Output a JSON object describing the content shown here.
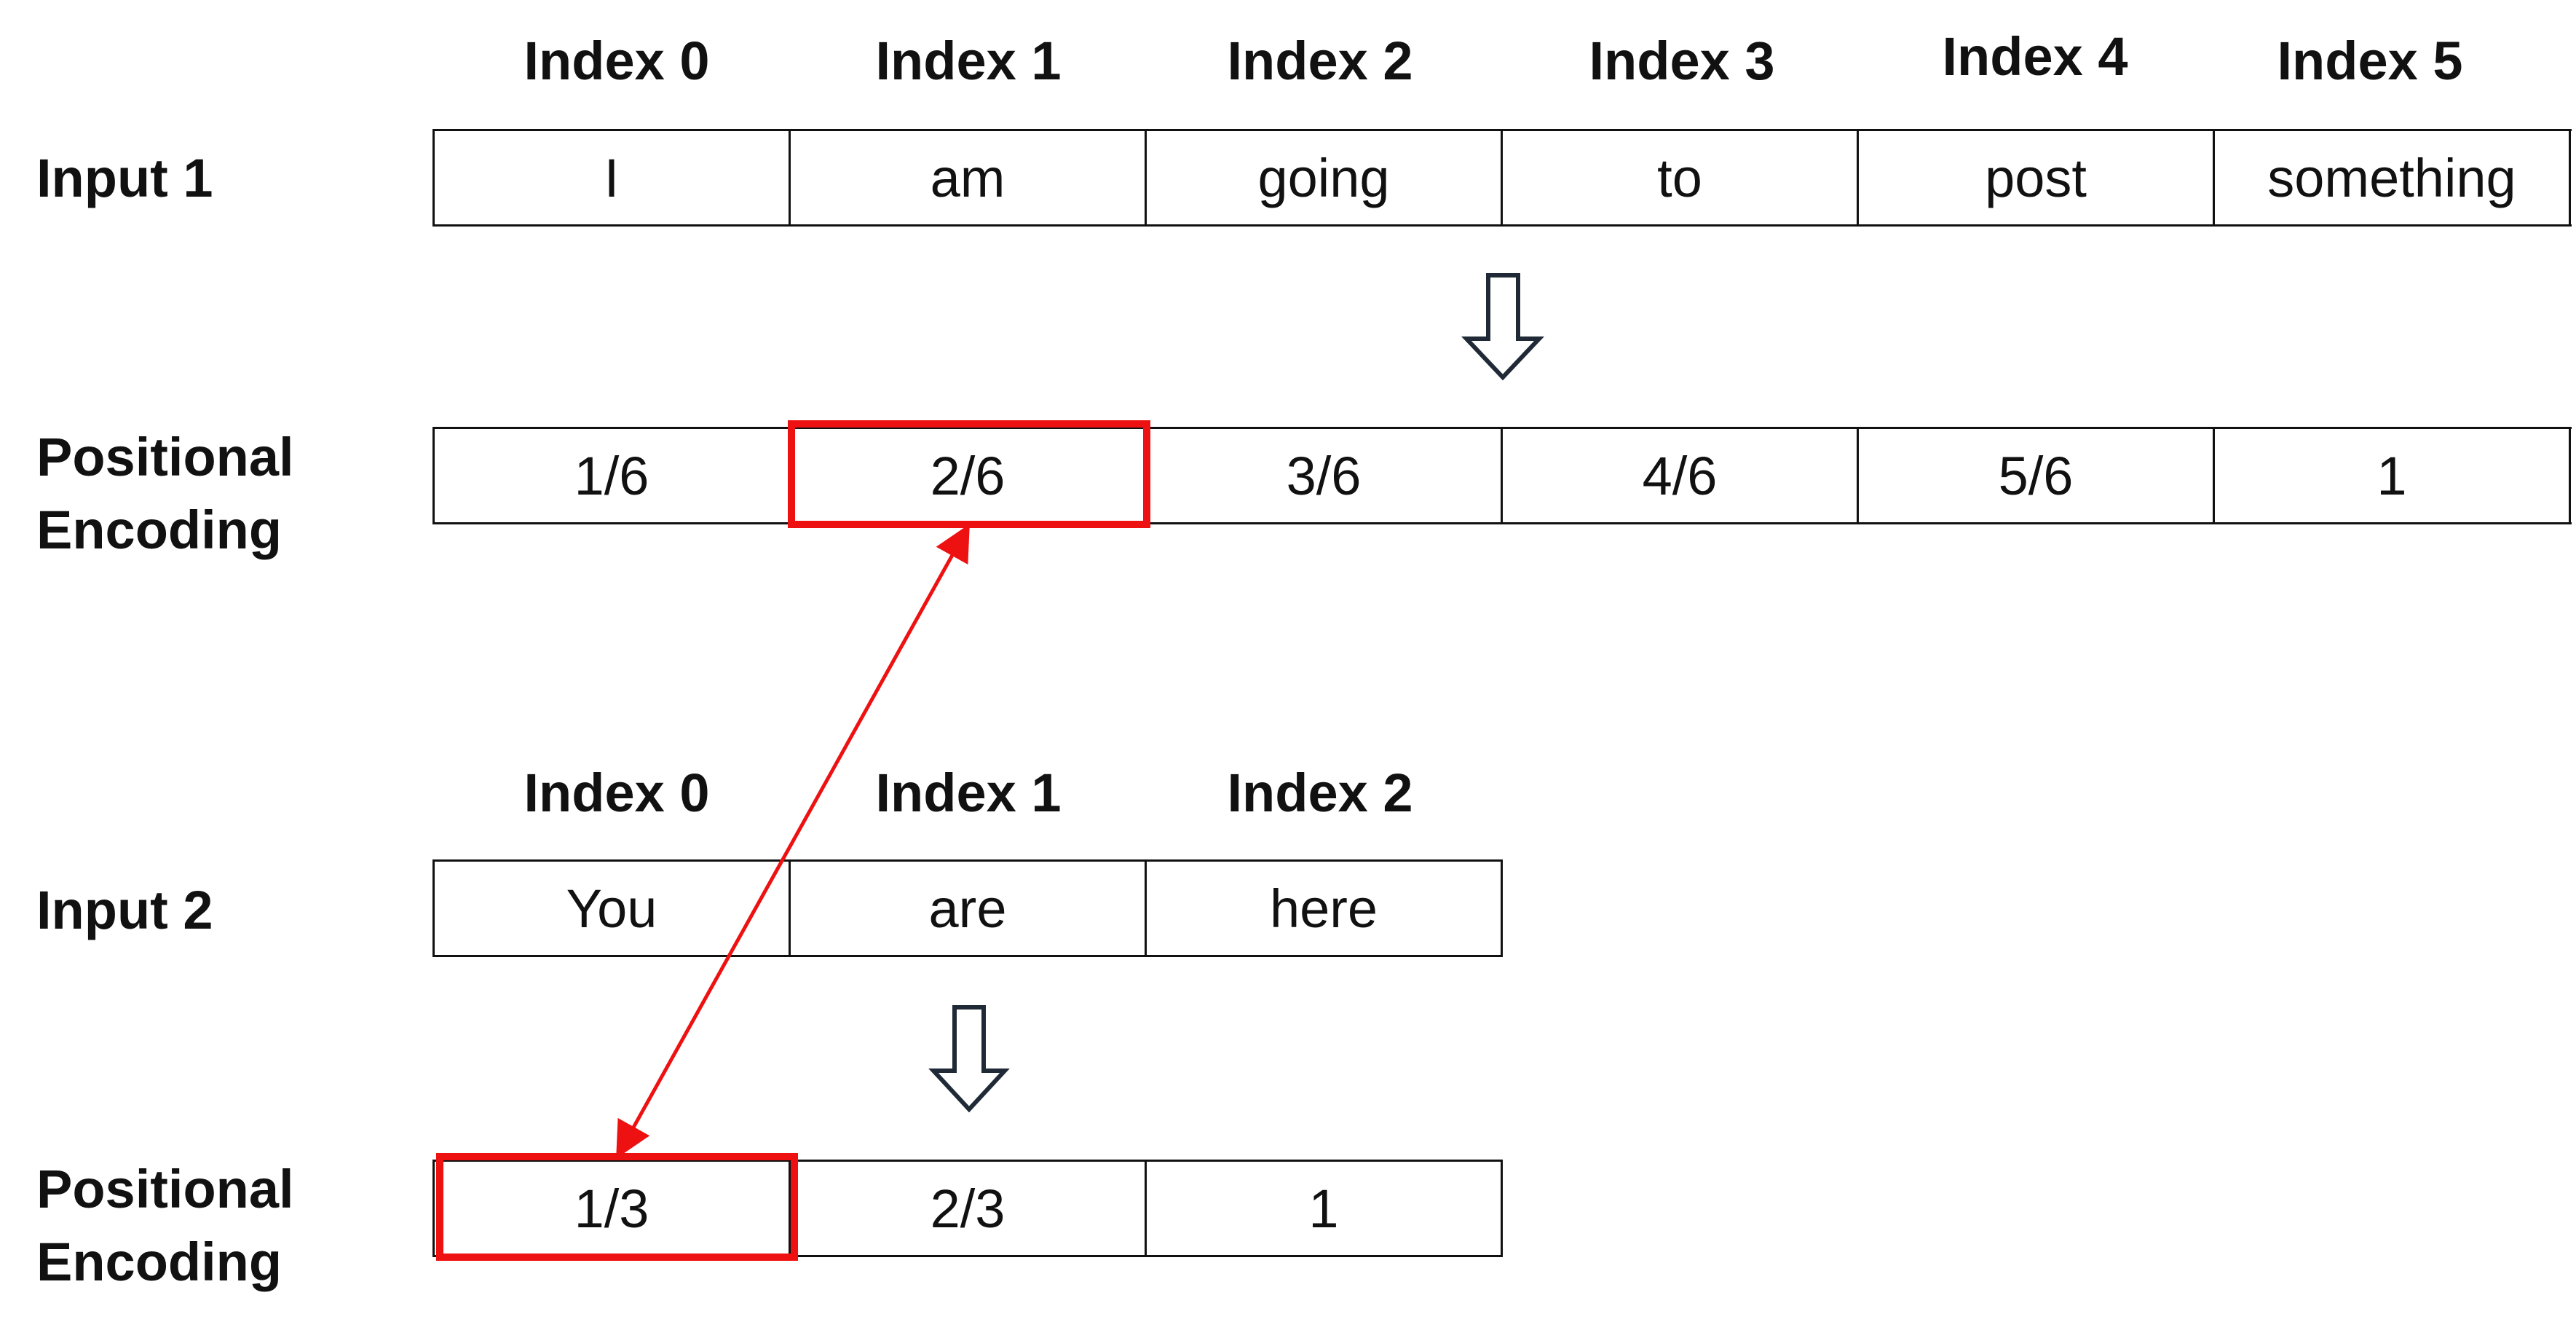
{
  "top": {
    "indices": [
      "Index 0",
      "Index 1",
      "Index 2",
      "Index 3",
      "Index 4",
      "Index 5"
    ],
    "input_label": "Input 1",
    "tokens": [
      "I",
      "am",
      "going",
      "to",
      "post",
      "something"
    ],
    "encoding_label_line1": "Positional",
    "encoding_label_line2": "Encoding",
    "encodings": [
      "1/6",
      "2/6",
      "3/6",
      "4/6",
      "5/6",
      "1"
    ]
  },
  "bottom": {
    "indices": [
      "Index 0",
      "Index 1",
      "Index 2"
    ],
    "input_label": "Input 2",
    "tokens": [
      "You",
      "are",
      "here"
    ],
    "encoding_label_line1": "Positional",
    "encoding_label_line2": "Encoding",
    "encodings": [
      "1/3",
      "2/3",
      "1"
    ]
  },
  "colors": {
    "highlight": "#ee1111",
    "arrow_outline": "#1f2a36",
    "text": "#111111"
  }
}
